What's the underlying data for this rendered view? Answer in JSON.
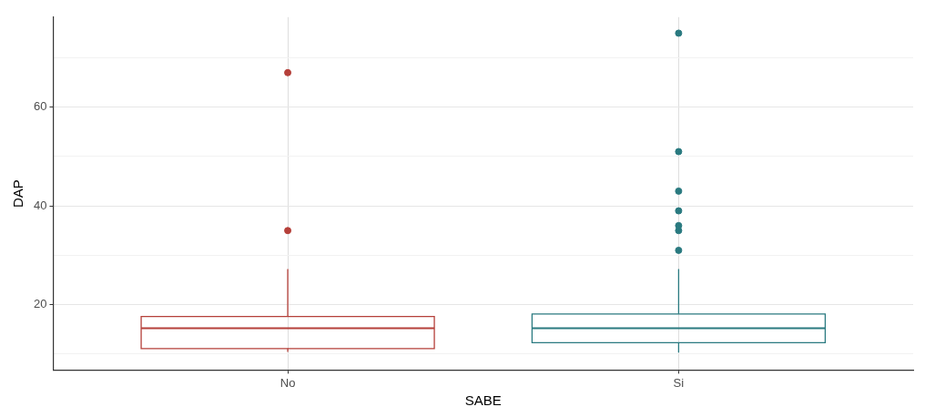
{
  "chart_data": {
    "type": "box",
    "xlabel": "SABE",
    "ylabel": "DAP",
    "categories": [
      "No",
      "Si"
    ],
    "ylim": [
      6.75,
      78.25
    ],
    "yticks": [
      {
        "value": 10,
        "label": null
      },
      20,
      {
        "value": 30,
        "label": null
      },
      40,
      {
        "value": 50,
        "label": null
      },
      60,
      {
        "value": 70,
        "label": null
      }
    ],
    "grid": true,
    "legend": false,
    "series": [
      {
        "color": "#b5403a",
        "boxes": [
          {
            "low": 10.4,
            "q1": 11.1,
            "median": 15.2,
            "q3": 17.6,
            "high": 27.2,
            "outliers": [
              35,
              67
            ]
          },
          null
        ]
      },
      {
        "color": "#2a7a80",
        "boxes": [
          null,
          {
            "low": 10.3,
            "q1": 12.3,
            "median": 15.2,
            "q3": 18.1,
            "high": 27.2,
            "outliers": [
              31,
              35,
              36,
              39,
              43,
              51,
              75
            ]
          }
        ]
      }
    ]
  }
}
